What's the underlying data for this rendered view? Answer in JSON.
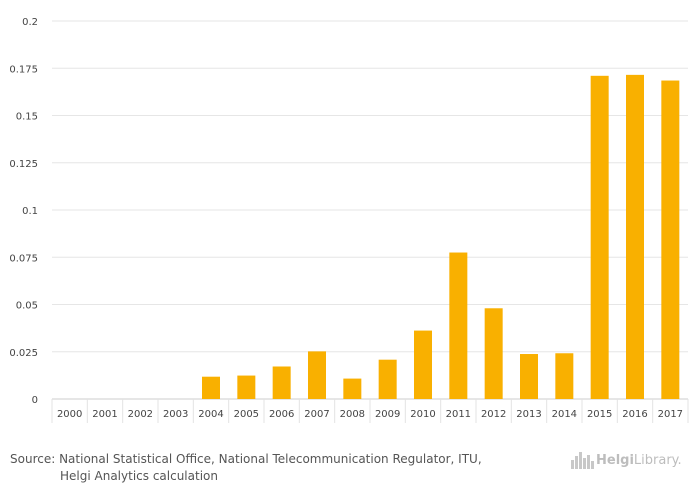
{
  "chart_data": {
    "type": "bar",
    "title": "",
    "xlabel": "",
    "ylabel": "",
    "categories": [
      "2000",
      "2001",
      "2002",
      "2003",
      "2004",
      "2005",
      "2006",
      "2007",
      "2008",
      "2009",
      "2010",
      "2011",
      "2012",
      "2013",
      "2014",
      "2015",
      "2016",
      "2017"
    ],
    "values": [
      0,
      0,
      0,
      0,
      0.0118,
      0.0124,
      0.0172,
      0.0252,
      0.0108,
      0.0208,
      0.0362,
      0.0775,
      0.048,
      0.0238,
      0.0242,
      0.171,
      0.1715,
      0.1685
    ],
    "ylim": [
      0,
      0.2
    ],
    "yticks": [
      0,
      0.025,
      0.05,
      0.075,
      0.1,
      0.125,
      0.15,
      0.175,
      0.2
    ],
    "ytick_labels": [
      "0",
      "0.025",
      "0.05",
      "0.075",
      "0.1",
      "0.125",
      "0.15",
      "0.175",
      "0.2"
    ],
    "grid": true,
    "bar_color": "#f9b000"
  },
  "footer": {
    "source_line1": "Source: National Statistical Office, National Telecommunication Regulator, ITU,",
    "source_line2": "Helgi Analytics calculation",
    "logo_part1": "Helgi",
    "logo_part2": "Library."
  }
}
